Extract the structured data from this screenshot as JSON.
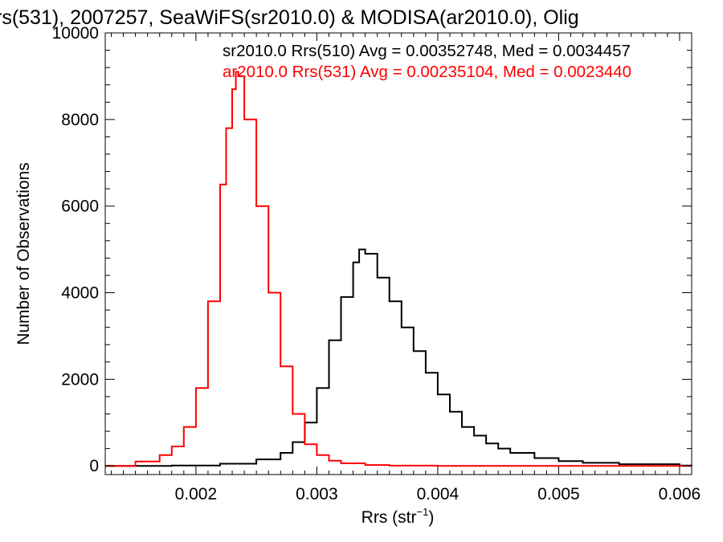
{
  "chart_data": {
    "type": "line",
    "step": true,
    "title": "rs(531), 2007257, SeaWiFS(sr2010.0) & MODISA(ar2010.0), Olig",
    "xlabel": "Rrs (str",
    "xlabel_sup": "−1",
    "xlabel_end": ")",
    "ylabel": "Number of Observations",
    "xlim": [
      0.00125,
      0.0061
    ],
    "ylim": [
      -200,
      10000
    ],
    "xticks": [
      0.002,
      0.003,
      0.004,
      0.005,
      0.006
    ],
    "xtick_labels": [
      "0.002",
      "0.003",
      "0.004",
      "0.005",
      "0.006"
    ],
    "yticks": [
      0,
      2000,
      4000,
      6000,
      8000,
      10000
    ],
    "ytick_labels": [
      "0",
      "2000",
      "4000",
      "6000",
      "8000",
      "10000"
    ],
    "grid": false,
    "legend_position": "top-right",
    "series": [
      {
        "name": "sr2010.0 Rrs(510) Avg = 0.00352748, Med = 0.0034457",
        "color": "#000000",
        "x": [
          0.00125,
          0.0018,
          0.0022,
          0.0025,
          0.0027,
          0.0028,
          0.0029,
          0.003,
          0.0031,
          0.0032,
          0.0033,
          0.00335,
          0.0034,
          0.0035,
          0.0036,
          0.0037,
          0.0038,
          0.0039,
          0.004,
          0.0041,
          0.0042,
          0.0043,
          0.0044,
          0.0045,
          0.0046,
          0.0048,
          0.005,
          0.0052,
          0.0055,
          0.006,
          0.0061
        ],
        "y": [
          0,
          10,
          50,
          150,
          300,
          550,
          1000,
          1800,
          2900,
          3900,
          4700,
          5000,
          4900,
          4350,
          3800,
          3200,
          2650,
          2150,
          1650,
          1250,
          900,
          700,
          520,
          400,
          300,
          180,
          110,
          70,
          40,
          10,
          5
        ]
      },
      {
        "name": "ar2010.0 Rrs(531) Avg = 0.00235104, Med = 0.0023440",
        "color": "#ff0000",
        "x": [
          0.00125,
          0.0015,
          0.0017,
          0.0018,
          0.0019,
          0.002,
          0.0021,
          0.0022,
          0.00225,
          0.0023,
          0.00233,
          0.00235,
          0.0024,
          0.0025,
          0.0026,
          0.0027,
          0.0028,
          0.0029,
          0.003,
          0.0031,
          0.0032,
          0.0034,
          0.0036,
          0.004,
          0.0061
        ],
        "y": [
          0,
          100,
          250,
          450,
          900,
          1800,
          3800,
          6500,
          7800,
          8700,
          9100,
          9000,
          8000,
          6000,
          4000,
          2300,
          1200,
          500,
          250,
          120,
          60,
          20,
          5,
          0,
          0
        ]
      }
    ]
  }
}
